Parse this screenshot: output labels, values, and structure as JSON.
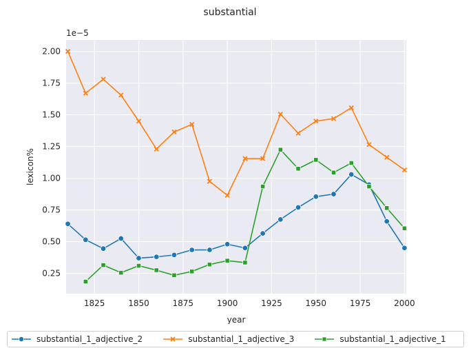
{
  "chart_data": {
    "type": "line",
    "title": "substantial",
    "xlabel": "year",
    "ylabel": "lexicon%",
    "y_offset_text": "1e−5",
    "xlim": [
      1809,
      2001
    ],
    "ylim": [
      0.09,
      2.09
    ],
    "y_scale_note": "values in units of 1e-5",
    "x_ticks": [
      1825,
      1850,
      1875,
      1900,
      1925,
      1950,
      1975,
      2000
    ],
    "y_ticks": [
      0.25,
      0.5,
      0.75,
      1.0,
      1.25,
      1.5,
      1.75,
      2.0
    ],
    "x_tick_labels": [
      "1825",
      "1850",
      "1875",
      "1900",
      "1925",
      "1950",
      "1975",
      "2000"
    ],
    "y_tick_labels": [
      "0.25",
      "0.50",
      "0.75",
      "1.00",
      "1.25",
      "1.50",
      "1.75",
      "2.00"
    ],
    "grid": true,
    "legend_position": "bottom",
    "series": [
      {
        "name": "substantial_1_adjective_2",
        "color": "#1f77b4",
        "marker": "circle",
        "x": [
          1810,
          1820,
          1830,
          1840,
          1850,
          1860,
          1870,
          1880,
          1890,
          1900,
          1910,
          1920,
          1930,
          1940,
          1950,
          1960,
          1970,
          1980,
          1990,
          2000
        ],
        "values": [
          0.64,
          0.515,
          0.445,
          0.525,
          0.37,
          0.38,
          0.395,
          0.435,
          0.435,
          0.48,
          0.45,
          0.565,
          0.675,
          0.77,
          0.855,
          0.875,
          1.03,
          0.95,
          0.66,
          0.45
        ]
      },
      {
        "name": "substantial_1_adjective_3",
        "color": "#ff7f0e",
        "marker": "x",
        "x": [
          1810,
          1820,
          1830,
          1840,
          1850,
          1860,
          1870,
          1880,
          1890,
          1900,
          1910,
          1920,
          1930,
          1940,
          1950,
          1960,
          1970,
          1980,
          1990,
          2000
        ],
        "values": [
          2.0,
          1.67,
          1.78,
          1.655,
          1.45,
          1.23,
          1.365,
          1.425,
          0.975,
          0.865,
          1.155,
          1.155,
          1.505,
          1.355,
          1.45,
          1.47,
          1.555,
          1.265,
          1.165,
          1.065
        ]
      },
      {
        "name": "substantial_1_adjective_1",
        "color": "#2ca02c",
        "marker": "square",
        "x": [
          1820,
          1830,
          1840,
          1850,
          1860,
          1870,
          1880,
          1890,
          1900,
          1910,
          1920,
          1930,
          1940,
          1950,
          1960,
          1970,
          1980,
          1990,
          2000
        ],
        "values": [
          0.185,
          0.315,
          0.255,
          0.31,
          0.275,
          0.235,
          0.265,
          0.32,
          0.35,
          0.335,
          0.935,
          1.225,
          1.075,
          1.145,
          1.045,
          1.12,
          0.935,
          0.765,
          0.605
        ]
      }
    ]
  }
}
